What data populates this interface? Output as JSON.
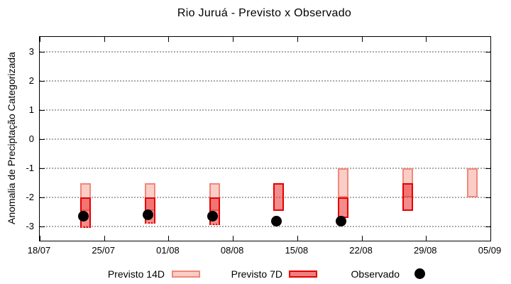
{
  "title": "Rio Juruá - Previsto x Observado",
  "axes": {
    "y_label": "Anomalia de Preciptação Categorizada",
    "y_ticks": [
      3,
      2,
      1,
      0,
      -1,
      -2,
      -3
    ],
    "x_tick_labels": [
      "18/07",
      "25/07",
      "01/08",
      "08/08",
      "15/08",
      "22/08",
      "29/08",
      "05/09"
    ]
  },
  "legend": [
    {
      "label": "Previsto 14D",
      "type": "box",
      "fill": "#fbcdc7",
      "border": "#f08878"
    },
    {
      "label": "Previsto 7D",
      "type": "box",
      "fill": "#f08080",
      "border": "#e60000"
    },
    {
      "label": "Observado",
      "type": "dot",
      "fill": "#000000"
    }
  ],
  "colors": {
    "previsto_14d_fill": "#fbcdc7",
    "previsto_14d_border": "#f08878",
    "previsto_7d_fill": "#f08080",
    "previsto_7d_border": "#e60000",
    "overlap_fill": "#f27876",
    "observado": "#000000",
    "gridline": "#ababab"
  },
  "chart_data": {
    "type": "candlestick+scatter",
    "title": "Rio Juruá - Previsto x Observado",
    "ylabel": "Anomalia de Preciptação Categorizada",
    "ylim": [
      -3.5,
      3.5
    ],
    "x_start_label": "18/07",
    "x_end_label": "05/09",
    "x_days_span": 49,
    "x_tick_interval_days": 7,
    "grid": "dotted horizontal at integer y values",
    "legend_position": "bottom, outside plot",
    "series_note": "Previsto 14D drawn first (light pink), Previsto 7D overlaid translucent red (overlap renders darker), Observado = black dots",
    "clusters": [
      {
        "date": "23/07",
        "day": 5,
        "previsto_14d": [
          -1.5,
          -2.45
        ],
        "previsto_7d": [
          -2.0,
          -3.05
        ],
        "dotted_low": true,
        "observado": -2.65
      },
      {
        "date": "30/07",
        "day": 12,
        "previsto_14d": [
          -1.5,
          -2.45
        ],
        "previsto_7d": [
          -2.0,
          -2.9
        ],
        "dotted_low": true,
        "observado": -2.6
      },
      {
        "date": "06/08",
        "day": 19,
        "previsto_14d": [
          -1.5,
          -2.45
        ],
        "previsto_7d": [
          -2.0,
          -2.95
        ],
        "dotted_low": true,
        "observado": -2.65
      },
      {
        "date": "13/08",
        "day": 26,
        "previsto_14d": null,
        "previsto_7d": [
          -1.5,
          -2.45
        ],
        "dotted_low": false,
        "observado": -2.8
      },
      {
        "date": "20/08",
        "day": 33,
        "previsto_14d": [
          -1.0,
          -2.0
        ],
        "previsto_7d": [
          -2.0,
          -2.7
        ],
        "dotted_low": false,
        "observado": -2.8
      },
      {
        "date": "27/08",
        "day": 40,
        "previsto_14d": [
          -1.0,
          -2.0
        ],
        "previsto_7d": [
          -1.5,
          -2.45
        ],
        "dotted_low": false,
        "observado": null
      },
      {
        "date": "03/09",
        "day": 47,
        "previsto_14d": [
          -1.0,
          -2.0
        ],
        "previsto_7d": null,
        "dotted_low": false,
        "observado": null
      }
    ]
  }
}
